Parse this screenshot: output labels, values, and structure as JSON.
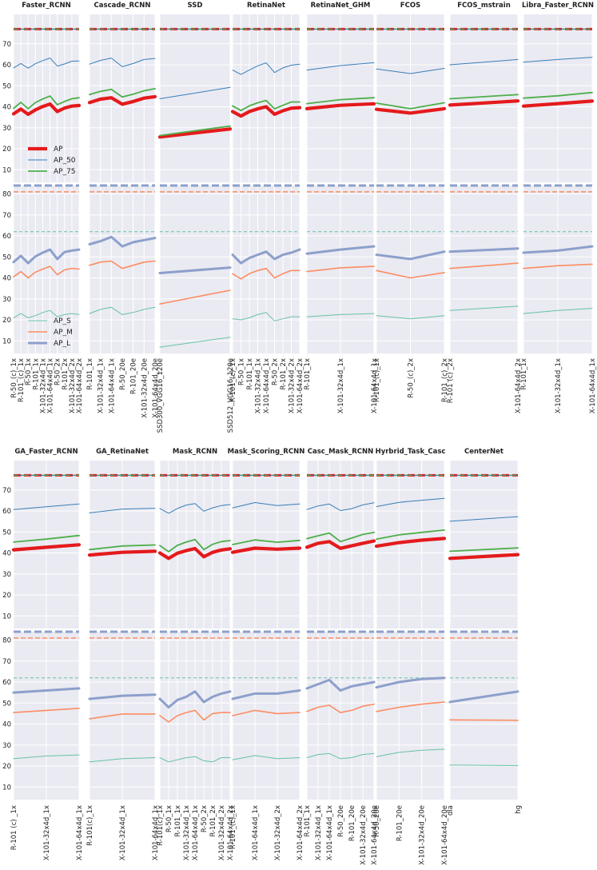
{
  "colors": {
    "AP": "#e41a1c",
    "AP_50": "#377eb8",
    "AP_75": "#4daf4a",
    "AP_S": "#66c2a5",
    "AP_M": "#fc8d62",
    "AP_L": "#8da0cb",
    "panel_bg": "#eaeaf2",
    "grid": "#ffffff"
  },
  "chart_data": {
    "type": "line",
    "top_yticks": [
      10,
      20,
      30,
      40,
      50,
      60,
      70
    ],
    "bottom_yticks": [
      10,
      20,
      30,
      40,
      50,
      60,
      70,
      80
    ],
    "ylim": [
      4,
      84
    ],
    "top_reference_lines": {
      "AP": 77,
      "AP_50": 77,
      "AP_75": 77
    },
    "bottom_reference_lines": {
      "AP_L": 84,
      "AP_M": 81,
      "AP_S": 62
    },
    "legends": {
      "top": [
        "AP",
        "AP_50",
        "AP_75"
      ],
      "bottom": [
        "AP_S",
        "AP_M",
        "AP_L"
      ]
    },
    "rows": [
      {
        "panels": [
          {
            "title": "Faster_RCNN",
            "labels": [
              "R-50_(c)_1x",
              "R-101_(c)_1x",
              "R-50_1x",
              "R-101_1x",
              "X-101-32x4d_1x",
              "X-101-64x4d_1x",
              "R-50_2x",
              "R-101_2x",
              "X-101-32x4d_2x",
              "X-101-64x4d_2x"
            ],
            "AP": [
              36.6,
              38.9,
              36.4,
              38.5,
              40.1,
              41.3,
              37.7,
              39.4,
              40.3,
              40.6
            ],
            "AP_50": [
              58.5,
              60.6,
              58.4,
              60.5,
              62.0,
              63.2,
              59.4,
              60.4,
              61.7,
              61.8
            ],
            "AP_75": [
              39.2,
              42.1,
              39.1,
              42.0,
              43.7,
              45.1,
              41.0,
              42.5,
              43.8,
              44.3
            ],
            "AP_S": [
              21.0,
              23.0,
              21.0,
              22.0,
              23.5,
              24.5,
              21.5,
              22.5,
              23.0,
              22.5
            ],
            "AP_M": [
              40.5,
              43.0,
              40.0,
              42.7,
              44.2,
              45.5,
              41.5,
              43.8,
              44.5,
              44.2
            ],
            "AP_L": [
              47.5,
              50.5,
              47.0,
              50.2,
              52.0,
              53.5,
              49.0,
              52.3,
              53.0,
              53.5
            ]
          },
          {
            "title": "Cascade_RCNN",
            "labels": [
              "R-101_1x",
              "X-101-32x4d_1x",
              "X-101-64x4d_1x",
              "R-50_20e",
              "R-101_20e",
              "X-101-32x4d_20e",
              "X-101-64x4d_20e"
            ],
            "AP": [
              42.0,
              43.6,
              44.3,
              41.2,
              42.5,
              44.1,
              44.8
            ],
            "AP_50": [
              60.3,
              62.1,
              63.2,
              59.1,
              60.6,
              62.5,
              63.0
            ],
            "AP_75": [
              45.8,
              47.3,
              48.3,
              44.7,
              46.0,
              47.6,
              48.6
            ],
            "AP_S": [
              23.0,
              25.0,
              26.0,
              22.5,
              23.5,
              25.0,
              26.0
            ],
            "AP_M": [
              46.0,
              47.5,
              48.0,
              44.5,
              46.0,
              47.5,
              48.0
            ],
            "AP_L": [
              56.0,
              57.5,
              59.5,
              55.0,
              57.0,
              58.0,
              59.0
            ]
          },
          {
            "title": "SSD",
            "labels": [
              "SSD300_VGG16_120e",
              "SSD512_VGG16_120e"
            ],
            "AP": [
              25.6,
              29.4
            ],
            "AP_50": [
              43.8,
              49.2
            ],
            "AP_75": [
              26.3,
              30.8
            ],
            "AP_S": [
              7.0,
              11.7
            ],
            "AP_M": [
              27.6,
              34.1
            ],
            "AP_L": [
              42.3,
              44.9
            ]
          },
          {
            "title": "RetinaNet",
            "labels": [
              "R-101_(c)_1x",
              "R-50_1x",
              "R-101_1x",
              "X-101-32x4d_1x",
              "X-101-64x4d_1x",
              "R-50_2x",
              "R-101_2x",
              "X-101-32x4d_2x",
              "X-101-64x4d_2x"
            ],
            "AP": [
              37.7,
              35.6,
              37.7,
              39.0,
              40.0,
              36.4,
              38.1,
              39.3,
              39.6
            ],
            "AP_50": [
              57.5,
              55.4,
              57.5,
              59.5,
              60.9,
              56.3,
              58.5,
              59.8,
              60.3
            ],
            "AP_75": [
              40.4,
              38.2,
              40.4,
              41.9,
              43.0,
              39.0,
              40.7,
              42.3,
              42.3
            ],
            "AP_S": [
              20.5,
              20.0,
              21.0,
              22.5,
              23.5,
              19.5,
              20.5,
              21.5,
              21.5
            ],
            "AP_M": [
              42.0,
              39.5,
              42.0,
              43.5,
              44.5,
              40.0,
              42.0,
              43.5,
              43.5
            ],
            "AP_L": [
              51.0,
              47.0,
              49.5,
              51.0,
              52.5,
              49.0,
              51.0,
              52.0,
              53.5
            ]
          },
          {
            "title": "RetinaNet_GHM",
            "labels": [
              "R-101_1x",
              "X-101-32x4d_1x",
              "X-101-64x4d_1x"
            ],
            "AP": [
              39.1,
              40.7,
              41.4
            ],
            "AP_50": [
              57.5,
              59.6,
              61.0
            ],
            "AP_75": [
              41.5,
              43.4,
              44.3
            ],
            "AP_S": [
              21.5,
              22.5,
              23.0
            ],
            "AP_M": [
              43.0,
              44.8,
              45.5
            ],
            "AP_L": [
              51.5,
              53.5,
              55.0
            ]
          },
          {
            "title": "FCOS",
            "labels": [
              "R-101_(c)_1x",
              "R-50_(c)_2x",
              "R-101_(c)_2x"
            ],
            "AP": [
              38.8,
              37.0,
              39.1
            ],
            "AP_50": [
              58.0,
              55.8,
              58.3
            ],
            "AP_75": [
              41.7,
              39.1,
              41.9
            ],
            "AP_S": [
              22.0,
              20.5,
              22.0
            ],
            "AP_M": [
              43.5,
              40.0,
              42.5
            ],
            "AP_L": [
              51.0,
              49.0,
              52.5
            ]
          },
          {
            "title": "FCOS_mstrain",
            "labels": [
              "R-101 (c)  _2x",
              "X-101-64x4d_2x"
            ],
            "AP": [
              40.8,
              42.8
            ],
            "AP_50": [
              60.0,
              62.5
            ],
            "AP_75": [
              43.8,
              45.8
            ],
            "AP_S": [
              24.5,
              26.5
            ],
            "AP_M": [
              44.5,
              47.0
            ],
            "AP_L": [
              52.5,
              54.0
            ]
          },
          {
            "title": "Libra_Faster_RCNN",
            "labels": [
              "R-101_1x",
              "X-101-32x4d_1x",
              "X-101-64x4d_1x"
            ],
            "AP": [
              40.3,
              41.5,
              42.7
            ],
            "AP_50": [
              61.2,
              62.5,
              63.6
            ],
            "AP_75": [
              44.1,
              45.2,
              46.8
            ],
            "AP_S": [
              23.0,
              24.5,
              25.5
            ],
            "AP_M": [
              44.5,
              45.8,
              46.5
            ],
            "AP_L": [
              52.0,
              53.0,
              55.0
            ]
          }
        ]
      },
      {
        "panels": [
          {
            "title": "GA_Faster_RCNN",
            "labels": [
              "R-101 (c)  _1x",
              "X-101-32x4d_1x",
              "X-101-64x4d_1x"
            ],
            "AP": [
              41.5,
              42.7,
              43.9
            ],
            "AP_50": [
              60.7,
              62.0,
              63.3
            ],
            "AP_75": [
              45.2,
              46.6,
              48.3
            ],
            "AP_S": [
              23.5,
              24.8,
              25.3
            ],
            "AP_M": [
              45.5,
              46.5,
              47.5
            ],
            "AP_L": [
              55.0,
              56.0,
              57.0
            ]
          },
          {
            "title": "GA_RetinaNet",
            "labels": [
              "R-101(c)_1x",
              "X-101-32x4d_1x",
              "X-101-64x4d_1x"
            ],
            "AP": [
              39.0,
              40.3,
              40.8
            ],
            "AP_50": [
              59.1,
              60.9,
              61.3
            ],
            "AP_75": [
              41.6,
              43.3,
              43.8
            ],
            "AP_S": [
              22.0,
              23.5,
              24.0
            ],
            "AP_M": [
              42.5,
              44.8,
              44.8
            ],
            "AP_L": [
              52.0,
              53.5,
              54.0
            ]
          },
          {
            "title": "Mask_RCNN",
            "labels": [
              "R-101(c)_1x",
              "R-50_1x",
              "R-101_1x",
              "X-101-32x4d_1x",
              "X-101-64x4d_1x",
              "R-50_2x",
              "R-101_2x",
              "X-101-32x4d_2x",
              "X-101-64x4d_2x"
            ],
            "AP": [
              40.0,
              37.4,
              39.9,
              41.1,
              42.1,
              38.2,
              40.3,
              41.4,
              42.0
            ],
            "AP_50": [
              61.2,
              58.9,
              61.2,
              62.8,
              63.5,
              59.9,
              61.5,
              62.6,
              63.1
            ],
            "AP_75": [
              43.5,
              40.6,
              43.6,
              45.2,
              46.4,
              41.6,
              44.1,
              45.4,
              45.9
            ],
            "AP_S": [
              24.0,
              22.0,
              23.0,
              24.0,
              24.5,
              22.5,
              22.0,
              24.0,
              24.0
            ],
            "AP_M": [
              44.0,
              41.0,
              44.0,
              45.5,
              46.5,
              42.0,
              45.0,
              45.5,
              45.5
            ],
            "AP_L": [
              52.0,
              48.0,
              51.5,
              53.0,
              55.5,
              50.5,
              53.0,
              54.5,
              55.5
            ]
          },
          {
            "title": "Mask_Scoring_RCNN",
            "labels": [
              "R-101_(c)_1x",
              "X-101-64x4d_1x",
              "X-101-32x4d_2x",
              "X-101-64x4d_2x"
            ],
            "AP": [
              40.3,
              42.3,
              41.8,
              42.3
            ],
            "AP_50": [
              61.5,
              64.0,
              62.6,
              63.3
            ],
            "AP_75": [
              44.0,
              46.2,
              45.1,
              46.0
            ],
            "AP_S": [
              23.0,
              25.0,
              23.5,
              24.0
            ],
            "AP_M": [
              44.0,
              46.5,
              45.0,
              45.5
            ],
            "AP_L": [
              52.0,
              54.5,
              54.5,
              56.0
            ]
          },
          {
            "title": "Casc_Mask_RCNN",
            "labels": [
              "R-101_1x",
              "X-101-32x4d_1x",
              "X-101-64x4d_1x",
              "R-50_20e",
              "R-101_20e",
              "X-101-32x4d_20e",
              "X-101-64x4d_20e"
            ],
            "AP": [
              42.7,
              44.6,
              45.4,
              42.2,
              43.4,
              44.6,
              45.7
            ],
            "AP_50": [
              60.7,
              62.4,
              63.3,
              60.2,
              61.1,
              62.9,
              63.9
            ],
            "AP_75": [
              46.8,
              48.2,
              49.5,
              45.4,
              47.1,
              48.8,
              49.8
            ],
            "AP_S": [
              24.0,
              25.5,
              26.0,
              23.5,
              24.0,
              25.5,
              26.0
            ],
            "AP_M": [
              46.0,
              48.0,
              49.0,
              45.5,
              46.5,
              48.5,
              49.5
            ],
            "AP_L": [
              57.0,
              59.0,
              61.0,
              56.0,
              58.0,
              59.0,
              60.0
            ]
          },
          {
            "title": "Hyrbrid_Task_Casc",
            "labels": [
              "R-50_20e",
              "R-101_20e",
              "X-101-32x4d_20e",
              "X-101-64x4d_20e"
            ],
            "AP": [
              43.2,
              44.9,
              46.1,
              46.9
            ],
            "AP_50": [
              62.1,
              64.1,
              65.1,
              66.0
            ],
            "AP_75": [
              46.6,
              48.6,
              49.8,
              50.9
            ],
            "AP_S": [
              24.5,
              26.5,
              27.5,
              28.0
            ],
            "AP_M": [
              46.0,
              48.0,
              49.5,
              50.5
            ],
            "AP_L": [
              57.5,
              60.0,
              61.5,
              62.0
            ]
          },
          {
            "title": "CenterNet",
            "labels": [
              "dla",
              "hg"
            ],
            "AP": [
              37.4,
              39.2
            ],
            "AP_50": [
              55.1,
              57.3
            ],
            "AP_75": [
              40.8,
              42.4
            ],
            "AP_S": [
              20.5,
              20.2
            ],
            "AP_M": [
              42.0,
              41.8
            ],
            "AP_L": [
              50.5,
              55.5
            ]
          }
        ]
      }
    ]
  }
}
